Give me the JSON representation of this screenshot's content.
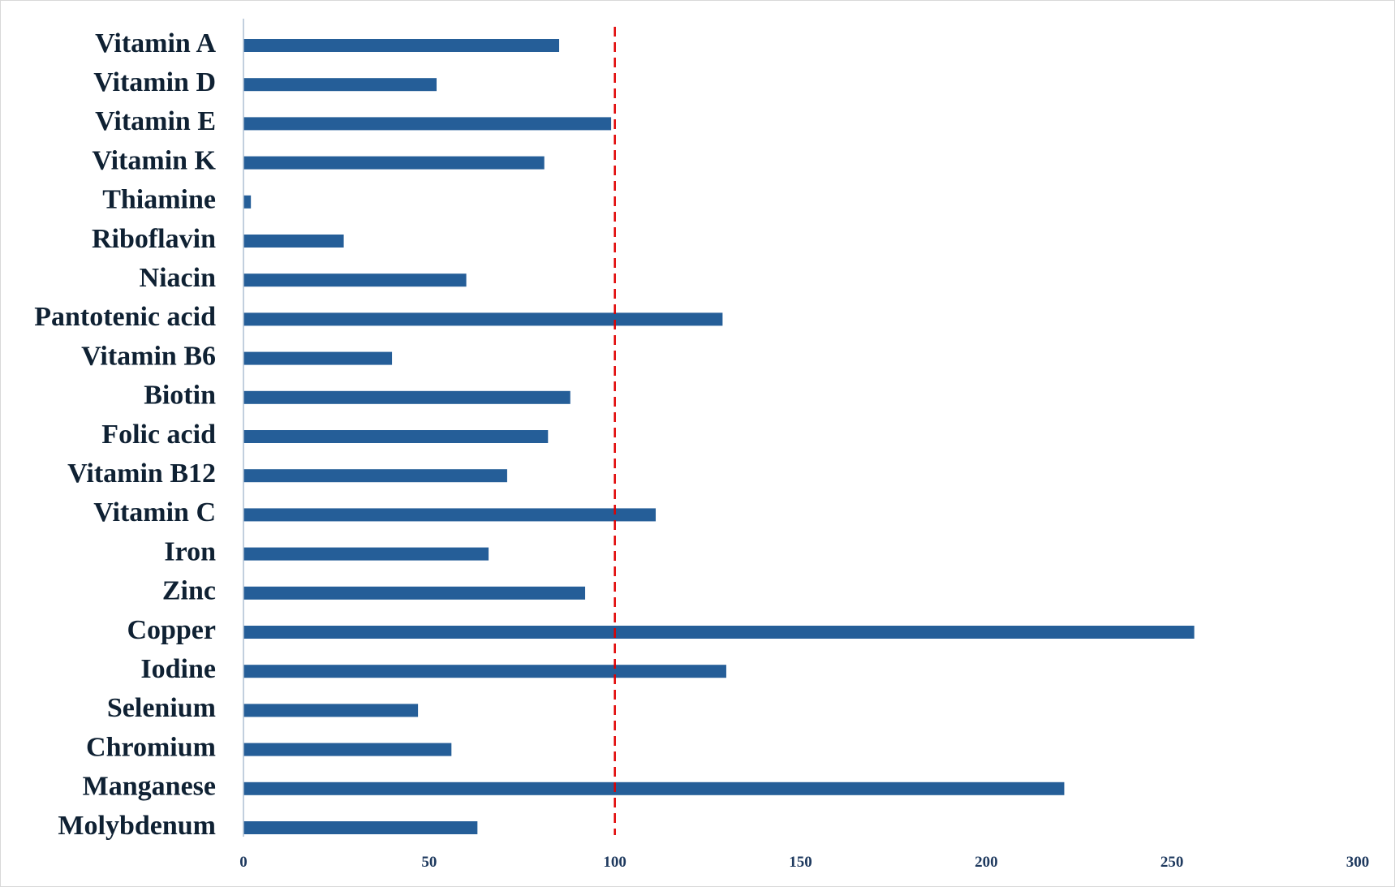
{
  "chart_data": {
    "type": "bar",
    "orientation": "horizontal",
    "title": "",
    "xlabel": "",
    "ylabel": "",
    "categories": [
      "Vitamin A",
      "Vitamin D",
      "Vitamin E",
      "Vitamin K",
      "Thiamine",
      "Riboflavin",
      "Niacin",
      "Pantotenic acid",
      "Vitamin B6",
      "Biotin",
      "Folic acid",
      "Vitamin B12",
      "Vitamin C",
      "Iron",
      "Zinc",
      "Copper",
      "Iodine",
      "Selenium",
      "Chromium",
      "Manganese",
      "Molybdenum"
    ],
    "values": [
      85,
      52,
      99,
      81,
      2,
      27,
      60,
      129,
      40,
      88,
      82,
      71,
      111,
      66,
      92,
      256,
      130,
      47,
      56,
      221,
      63
    ],
    "xlim": [
      0,
      300
    ],
    "xticks": [
      "0",
      "50",
      "100",
      "150",
      "200",
      "250",
      "300"
    ],
    "grid": false,
    "legend": "none",
    "reference_line": {
      "value": 100,
      "style": "dashed",
      "color": "#e00000"
    },
    "colors": {
      "bar": "#255e98",
      "axis": "#aebfd4",
      "reference": "#e00000"
    }
  }
}
